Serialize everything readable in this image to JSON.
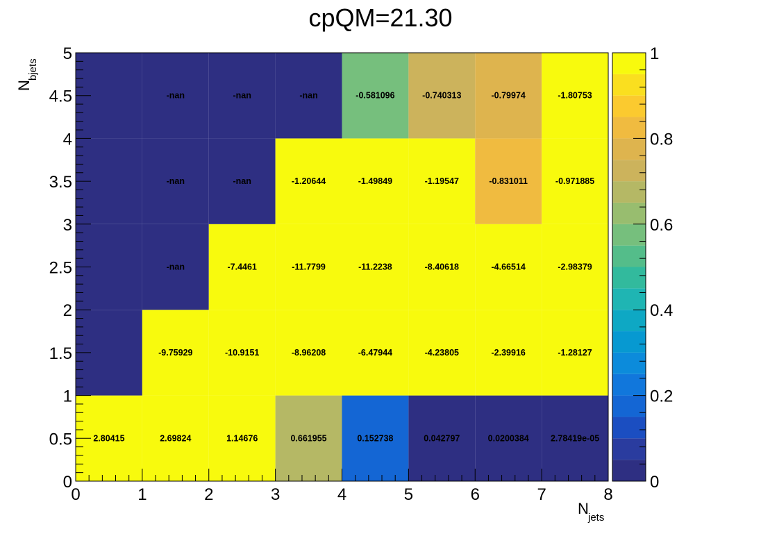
{
  "chart_data": {
    "type": "heatmap",
    "title": "cpQM=21.30",
    "xlabel": {
      "main": "N",
      "sub": "jets"
    },
    "ylabel": {
      "main": "N",
      "sub": "bjets"
    },
    "xlim": [
      0,
      8
    ],
    "ylim": [
      0,
      5
    ],
    "zlim": [
      0,
      1
    ],
    "x_ticks": [
      "0",
      "1",
      "2",
      "3",
      "4",
      "5",
      "6",
      "7",
      "8"
    ],
    "y_ticks": [
      "0",
      "0.5",
      "1",
      "1.5",
      "2",
      "2.5",
      "3",
      "3.5",
      "4",
      "4.5",
      "5"
    ],
    "z_ticks": [
      "0",
      "0.2",
      "0.4",
      "0.6",
      "0.8",
      "1"
    ],
    "palette": [
      "#2e2f82",
      "#2a3c9f",
      "#1b4ec1",
      "#1466d4",
      "#1177dc",
      "#0c8bdb",
      "#0799d1",
      "#0ea8c4",
      "#1fb5b3",
      "#32ba9d",
      "#54bd8a",
      "#76bf7d",
      "#98bd6f",
      "#b5b865",
      "#ccb35c",
      "#deb44e",
      "#f0bb40",
      "#fbca2f",
      "#fadf1f",
      "#f8fa0d"
    ],
    "x_edges": [
      0,
      1,
      2,
      3,
      4,
      5,
      6,
      7,
      8
    ],
    "y_edges": [
      0,
      1,
      2,
      3,
      4,
      5
    ],
    "cells": [
      [
        {
          "z": 1.0,
          "label": "2.80415"
        },
        {
          "z": 1.0,
          "label": "2.69824"
        },
        {
          "z": 1.0,
          "label": "1.14676"
        },
        {
          "z": 0.661955,
          "label": "0.661955"
        },
        {
          "z": 0.152738,
          "label": "0.152738"
        },
        {
          "z": 0.042797,
          "label": "0.042797"
        },
        {
          "z": 0.0200384,
          "label": "0.0200384"
        },
        {
          "z": 2.78419e-05,
          "label": "2.78419e-05"
        }
      ],
      [
        {
          "z": 0.03,
          "label": ""
        },
        {
          "z": 1.0,
          "label": "-9.75929"
        },
        {
          "z": 1.0,
          "label": "-10.9151"
        },
        {
          "z": 1.0,
          "label": "-8.96208"
        },
        {
          "z": 1.0,
          "label": "-6.47944"
        },
        {
          "z": 1.0,
          "label": "-4.23805"
        },
        {
          "z": 1.0,
          "label": "-2.39916"
        },
        {
          "z": 1.0,
          "label": "-1.28127"
        }
      ],
      [
        {
          "z": 0.03,
          "label": ""
        },
        {
          "z": 0.0,
          "label": "-nan"
        },
        {
          "z": 1.0,
          "label": "-7.4461"
        },
        {
          "z": 1.0,
          "label": "-11.7799"
        },
        {
          "z": 1.0,
          "label": "-11.2238"
        },
        {
          "z": 1.0,
          "label": "-8.40618"
        },
        {
          "z": 1.0,
          "label": "-4.66514"
        },
        {
          "z": 1.0,
          "label": "-2.98379"
        }
      ],
      [
        {
          "z": 0.03,
          "label": ""
        },
        {
          "z": 0.0,
          "label": "-nan"
        },
        {
          "z": 0.0,
          "label": "-nan"
        },
        {
          "z": 1.0,
          "label": "-1.20644"
        },
        {
          "z": 1.0,
          "label": "-1.49849"
        },
        {
          "z": 1.0,
          "label": "-1.19547"
        },
        {
          "z": 0.831011,
          "label": "-0.831011"
        },
        {
          "z": 1.0,
          "label": "-0.971885"
        }
      ],
      [
        {
          "z": 0.03,
          "label": ""
        },
        {
          "z": 0.0,
          "label": "-nan"
        },
        {
          "z": 0.0,
          "label": "-nan"
        },
        {
          "z": 0.0,
          "label": "-nan"
        },
        {
          "z": 0.581096,
          "label": "-0.581096"
        },
        {
          "z": 0.740313,
          "label": "-0.740313"
        },
        {
          "z": 0.79974,
          "label": "-0.79974"
        },
        {
          "z": 1.0,
          "label": "-1.80753"
        }
      ]
    ]
  }
}
